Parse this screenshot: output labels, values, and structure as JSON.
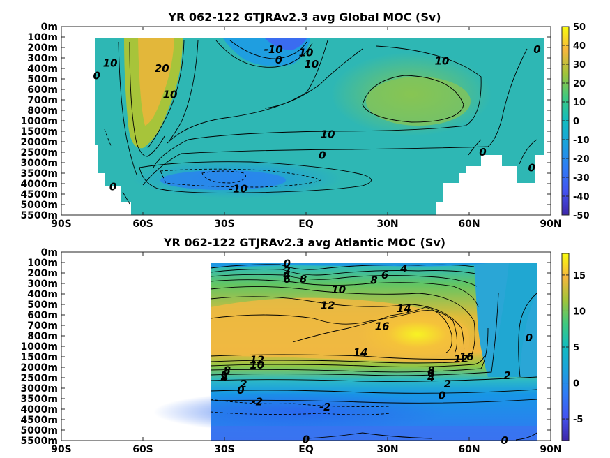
{
  "chart_data": [
    {
      "type": "heatmap",
      "title": "YR 062-122 GTJRAv2.3 avg  Global MOC (Sv)",
      "x_tick_labels": [
        "90S",
        "60S",
        "30S",
        "EQ",
        "30N",
        "60N",
        "90N"
      ],
      "x_ticks": [
        -90,
        -60,
        -30,
        0,
        30,
        60,
        90
      ],
      "xlim": [
        -90,
        90
      ],
      "y_tick_labels": [
        "0m",
        "100m",
        "200m",
        "300m",
        "400m",
        "500m",
        "600m",
        "700m",
        "800m",
        "1000m",
        "1500m",
        "2000m",
        "2500m",
        "3000m",
        "3500m",
        "4000m",
        "4500m",
        "5000m",
        "5500m"
      ],
      "colorbar": {
        "range": [
          -50,
          50
        ],
        "ticks": [
          50,
          40,
          30,
          20,
          10,
          0,
          -10,
          -20,
          -30,
          -40,
          -50
        ],
        "tick_labels": [
          "50",
          "40",
          "30",
          "20",
          "10",
          "0",
          "-10",
          "-20",
          "-30",
          "-40",
          "-50"
        ]
      },
      "contour_labels": [
        {
          "text": "-10",
          "lat": -12,
          "depth_index": 2.2
        },
        {
          "text": "0",
          "lat": -10,
          "depth_index": 3.2
        },
        {
          "text": "10",
          "lat": 2,
          "depth_index": 3.6
        },
        {
          "text": "10",
          "lat": 0,
          "depth_index": 2.5
        },
        {
          "text": "0",
          "lat": -77,
          "depth_index": 4.7
        },
        {
          "text": "10",
          "lat": -72,
          "depth_index": 3.5
        },
        {
          "text": "20",
          "lat": -53,
          "depth_index": 4.0
        },
        {
          "text": "10",
          "lat": -50,
          "depth_index": 6.5
        },
        {
          "text": "10",
          "lat": 50,
          "depth_index": 3.3
        },
        {
          "text": "0",
          "lat": 85,
          "depth_index": 2.2
        },
        {
          "text": "10",
          "lat": 8,
          "depth_index": 10.3
        },
        {
          "text": "0",
          "lat": 6,
          "depth_index": 12.3
        },
        {
          "text": "0",
          "lat": 65,
          "depth_index": 12.0
        },
        {
          "text": "0",
          "lat": 83,
          "depth_index": 13.5
        },
        {
          "text": "0",
          "lat": -71,
          "depth_index": 15.3
        },
        {
          "text": "-10",
          "lat": -25,
          "depth_index": 15.5
        }
      ]
    },
    {
      "type": "heatmap",
      "title": "YR 062-122 GTJRAv2.3 avg  Atlantic MOC (Sv)",
      "x_tick_labels": [
        "90S",
        "60S",
        "30S",
        "EQ",
        "30N",
        "60N",
        "90N"
      ],
      "x_ticks": [
        -90,
        -60,
        -30,
        0,
        30,
        60,
        90
      ],
      "xlim": [
        -90,
        90
      ],
      "y_tick_labels": [
        "0m",
        "100m",
        "200m",
        "300m",
        "400m",
        "500m",
        "600m",
        "700m",
        "800m",
        "1000m",
        "1500m",
        "2000m",
        "2500m",
        "3000m",
        "3500m",
        "4000m",
        "4500m",
        "5000m",
        "5500m"
      ],
      "colorbar": {
        "range": [
          -8,
          18
        ],
        "ticks": [
          15,
          10,
          5,
          0,
          -5
        ],
        "tick_labels": [
          "15",
          "10",
          "5",
          "0",
          "-5"
        ]
      },
      "contour_labels": [
        {
          "text": "0",
          "lat": -7,
          "depth_index": 1.1
        },
        {
          "text": "2",
          "lat": -7,
          "depth_index": 1.8
        },
        {
          "text": "4",
          "lat": -7,
          "depth_index": 2.2
        },
        {
          "text": "6",
          "lat": -7,
          "depth_index": 2.6
        },
        {
          "text": "8",
          "lat": -1,
          "depth_index": 2.6
        },
        {
          "text": "4",
          "lat": 36,
          "depth_index": 1.6
        },
        {
          "text": "6",
          "lat": 29,
          "depth_index": 2.2
        },
        {
          "text": "8",
          "lat": 25,
          "depth_index": 2.7
        },
        {
          "text": "10",
          "lat": 12,
          "depth_index": 3.6
        },
        {
          "text": "12",
          "lat": 8,
          "depth_index": 5.1
        },
        {
          "text": "14",
          "lat": 36,
          "depth_index": 5.4
        },
        {
          "text": "16",
          "lat": 28,
          "depth_index": 7.1
        },
        {
          "text": "14",
          "lat": 20,
          "depth_index": 9.6
        },
        {
          "text": "12",
          "lat": -18,
          "depth_index": 10.3
        },
        {
          "text": "10",
          "lat": -18,
          "depth_index": 10.8
        },
        {
          "text": "8",
          "lat": -29,
          "depth_index": 11.3
        },
        {
          "text": "6",
          "lat": -30,
          "depth_index": 11.7
        },
        {
          "text": "4",
          "lat": -30,
          "depth_index": 12.0
        },
        {
          "text": "2",
          "lat": -23,
          "depth_index": 12.6
        },
        {
          "text": "0",
          "lat": -24,
          "depth_index": 13.2
        },
        {
          "text": "-2",
          "lat": -18,
          "depth_index": 14.3
        },
        {
          "text": "-2",
          "lat": 7,
          "depth_index": 14.8
        },
        {
          "text": "16",
          "lat": 59,
          "depth_index": 10.0
        },
        {
          "text": "12",
          "lat": 57,
          "depth_index": 10.2
        },
        {
          "text": "8",
          "lat": 46,
          "depth_index": 11.3
        },
        {
          "text": "6",
          "lat": 46,
          "depth_index": 11.6
        },
        {
          "text": "4",
          "lat": 46,
          "depth_index": 12.0
        },
        {
          "text": "2",
          "lat": 52,
          "depth_index": 12.6
        },
        {
          "text": "2",
          "lat": 74,
          "depth_index": 11.8
        },
        {
          "text": "0",
          "lat": 50,
          "depth_index": 13.7
        },
        {
          "text": "0",
          "lat": 82,
          "depth_index": 8.2
        },
        {
          "text": "0",
          "lat": 0,
          "depth_index": 17.9
        },
        {
          "text": "0",
          "lat": 73,
          "depth_index": 18.0
        }
      ]
    }
  ]
}
